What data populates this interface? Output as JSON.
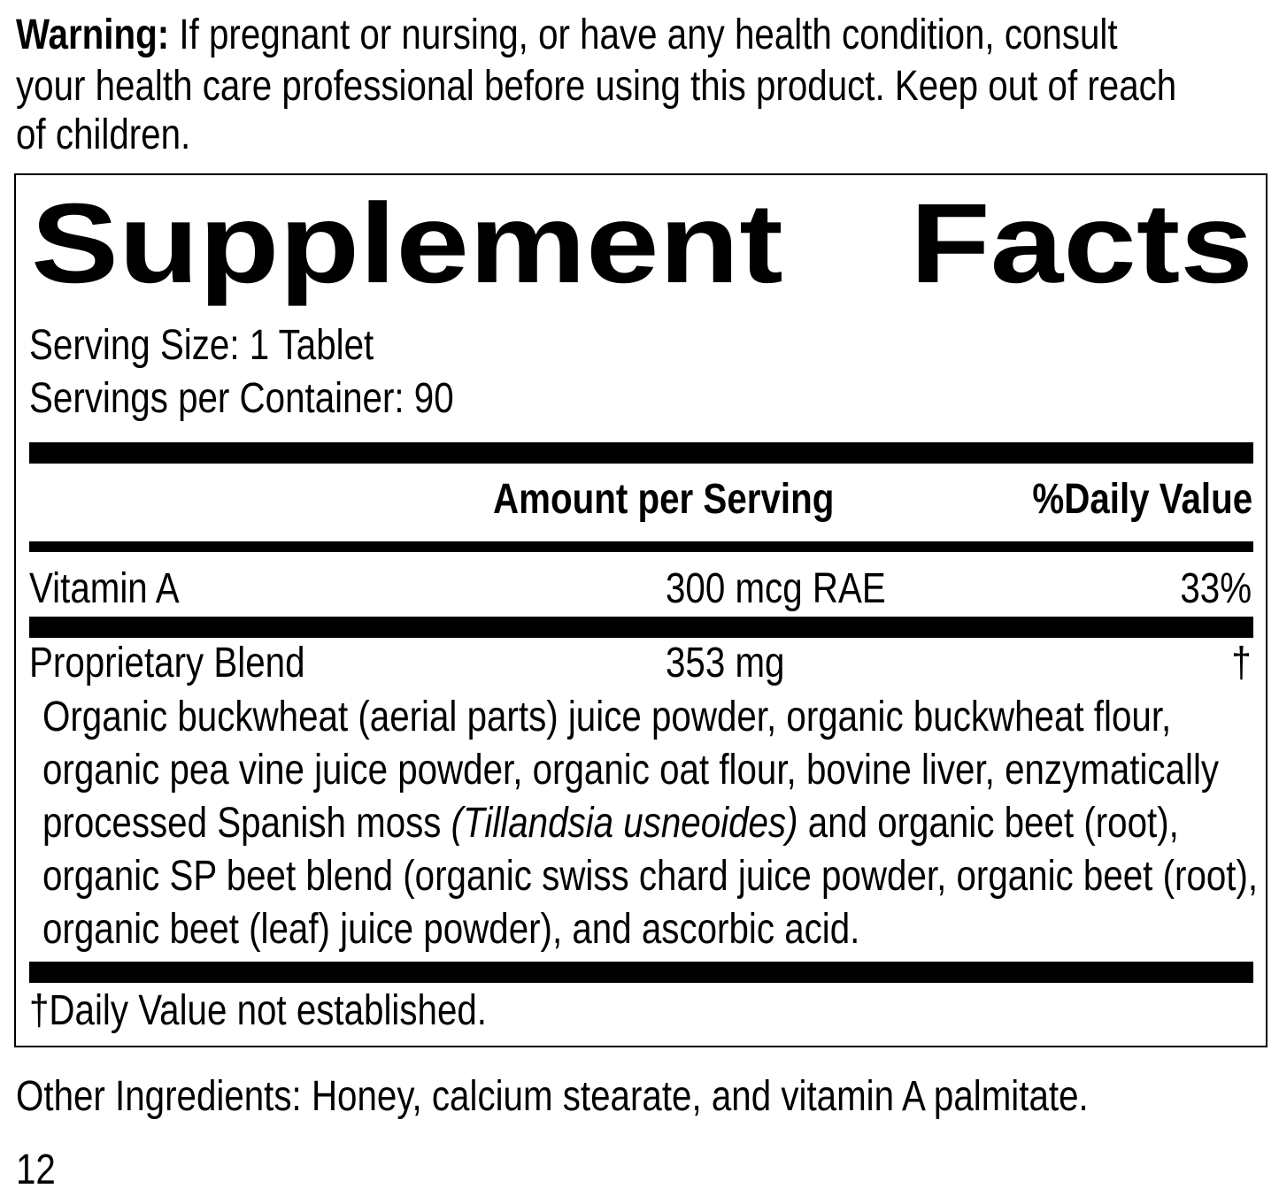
{
  "warning": {
    "label": "Warning:",
    "lines": [
      " If pregnant or nursing, or have any health condition, consult",
      "your health care professional before using this product. Keep out of reach",
      "of children."
    ]
  },
  "facts": {
    "title_word1": "Supplement",
    "title_word2": "Facts",
    "serving_size": "Serving Size: 1 Tablet",
    "servings_per_container": "Servings per Container: 90",
    "header_amount": "Amount per Serving",
    "header_dv": "%Daily Value",
    "rows": [
      {
        "name": "Vitamin A",
        "amount": "300 mcg RAE",
        "dv": "33%"
      },
      {
        "name": "Proprietary Blend",
        "amount": "353 mg",
        "dv": "†"
      }
    ],
    "blend_lines": [
      {
        "text": "Organic buckwheat (aerial parts) juice powder, organic buckwheat flour,"
      },
      {
        "text": "organic pea vine juice powder, organic oat flour, bovine liver, enzymatically"
      },
      {
        "text": "processed Spanish moss ",
        "italic": "(Tillandsia usneoides)",
        "after": " and organic beet (root),"
      },
      {
        "text": "organic SP beet blend (organic swiss chard juice powder, organic beet (root),"
      },
      {
        "text": "organic beet (leaf) juice powder), and ascorbic acid."
      }
    ],
    "footnote": "†Daily Value not established."
  },
  "other_ingredients": "Other Ingredients: Honey, calcium stearate, and vitamin A palmitate.",
  "page_number": "12"
}
